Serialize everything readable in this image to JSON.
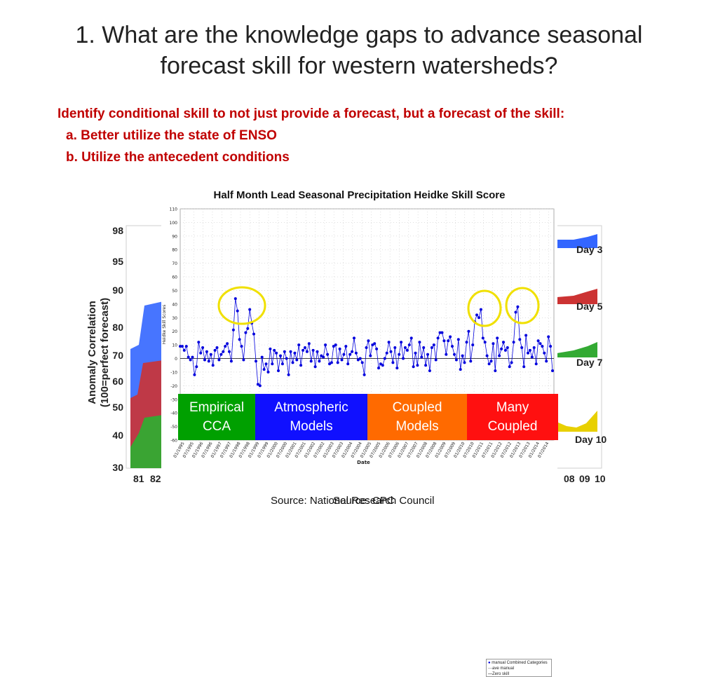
{
  "slide": {
    "title_line1": "1. What are the knowledge gaps to advance seasonal",
    "title_line2": "forecast skill for western watersheds?",
    "subtitle_main": "Identify conditional skill to not just provide a forecast, but a forecast of the skill:",
    "subtitle_a": "a. Better utilize the state of ENSO",
    "subtitle_b": "b. Utilize the antecedent conditions"
  },
  "background_chart": {
    "ylabel_line1": "Anomaly Correlation",
    "ylabel_line2": "(100=perfect forecast)",
    "yticks": [
      "98",
      "95",
      "90",
      "80",
      "70",
      "60",
      "50",
      "40",
      "30"
    ],
    "xticks_left": [
      "81",
      "82"
    ],
    "xticks_right": [
      "08",
      "09",
      "10"
    ],
    "day_labels": [
      "Day 3",
      "Day 5",
      "Day 7",
      "Day 10"
    ],
    "colors": {
      "day3": "#3366ff",
      "day5": "#cc3333",
      "day7": "#33aa33",
      "day10": "#e8d000"
    }
  },
  "chart_data": {
    "type": "line",
    "title": "Half Month Lead Seasonal Precipitation Heidke Skill Score",
    "xlabel": "Date",
    "ylabel": "Heidke Skill Scores",
    "ylim": [
      -60,
      110
    ],
    "yticks": [
      110,
      100,
      90,
      80,
      70,
      60,
      50,
      40,
      30,
      20,
      10,
      0,
      -10,
      -20,
      -30,
      -40,
      -50,
      -60
    ],
    "xtick_labels": [
      "01/1995",
      "07/1995",
      "01/1996",
      "07/1996",
      "01/1997",
      "07/1997",
      "01/1998",
      "07/1998",
      "01/1999",
      "07/1999",
      "01/2000",
      "07/2000",
      "01/2001",
      "07/2001",
      "01/2002",
      "07/2002",
      "01/2003",
      "07/2003",
      "01/2004",
      "07/2004",
      "01/2005",
      "07/2005",
      "01/2006",
      "07/2006",
      "01/2007",
      "07/2007",
      "01/2008",
      "07/2008",
      "01/2009",
      "07/2009",
      "01/2010",
      "07/2010",
      "01/2011",
      "07/2011",
      "01/2012",
      "07/2012",
      "01/2013",
      "07/2013",
      "01/2014",
      "07/2014"
    ],
    "series": [
      {
        "name": "manual Combined Categories",
        "color": "#0000dd",
        "values": [
          9,
          9,
          6,
          9,
          1,
          -1,
          1,
          -12,
          -6,
          12,
          4,
          8,
          -1,
          5,
          -2,
          3,
          -5,
          6,
          8,
          -1,
          3,
          5,
          9,
          11,
          5,
          -2,
          21,
          44,
          35,
          14,
          9,
          -1,
          19,
          22,
          36,
          26,
          18,
          -2,
          -19,
          -20,
          1,
          -8,
          -4,
          -10,
          7,
          -4,
          6,
          4,
          -9,
          2,
          -4,
          5,
          0,
          -12,
          5,
          -3,
          4,
          -1,
          10,
          -5,
          6,
          8,
          5,
          11,
          -2,
          6,
          -6,
          5,
          -2,
          2,
          1,
          10,
          3,
          -4,
          -3,
          9,
          10,
          -3,
          7,
          -1,
          3,
          9,
          -4,
          3,
          5,
          15,
          4,
          -1,
          0,
          -3,
          -12,
          8,
          13,
          2,
          10,
          11,
          7,
          -7,
          -4,
          -5,
          0,
          4,
          12,
          5,
          -3,
          8,
          -7,
          3,
          12,
          0,
          8,
          6,
          10,
          15,
          -6,
          4,
          -5,
          12,
          1,
          8,
          -5,
          3,
          -9,
          8,
          10,
          -1,
          15,
          19,
          19,
          13,
          3,
          13,
          16,
          9,
          3,
          -1,
          14,
          -8,
          2,
          -3,
          12,
          20,
          -2,
          10,
          27,
          32,
          30,
          36,
          15,
          12,
          2,
          -4,
          -2,
          11,
          -9,
          15,
          2,
          7,
          12,
          6,
          8,
          -6,
          -3,
          12,
          34,
          38,
          14,
          8,
          -6,
          17,
          4,
          6,
          1,
          8,
          -4,
          13,
          11,
          9,
          4,
          -2,
          16,
          9,
          -9
        ]
      },
      {
        "name": "ave manual",
        "color": "#777777",
        "values": [
          0
        ]
      },
      {
        "name": "Zero skill",
        "color": "#000000",
        "values": [
          0
        ]
      }
    ]
  },
  "overlay_boxes": [
    {
      "line1": "Empirical",
      "line2": "CCA",
      "color": "#00a000"
    },
    {
      "line1": "Atmospheric",
      "line2": "Models",
      "color": "#1010ff"
    },
    {
      "line1": "Coupled",
      "line2": "Models",
      "color": "#ff6a00"
    },
    {
      "line1": "Many",
      "line2": "Coupled",
      "color": "#ff1010"
    }
  ],
  "legend": {
    "item1": "manual Combined Categories",
    "item2": "ave manual",
    "item3": "Zero skill"
  },
  "sources": {
    "source_a": "Source: National Research Council",
    "source_b": "Source: CPC"
  }
}
